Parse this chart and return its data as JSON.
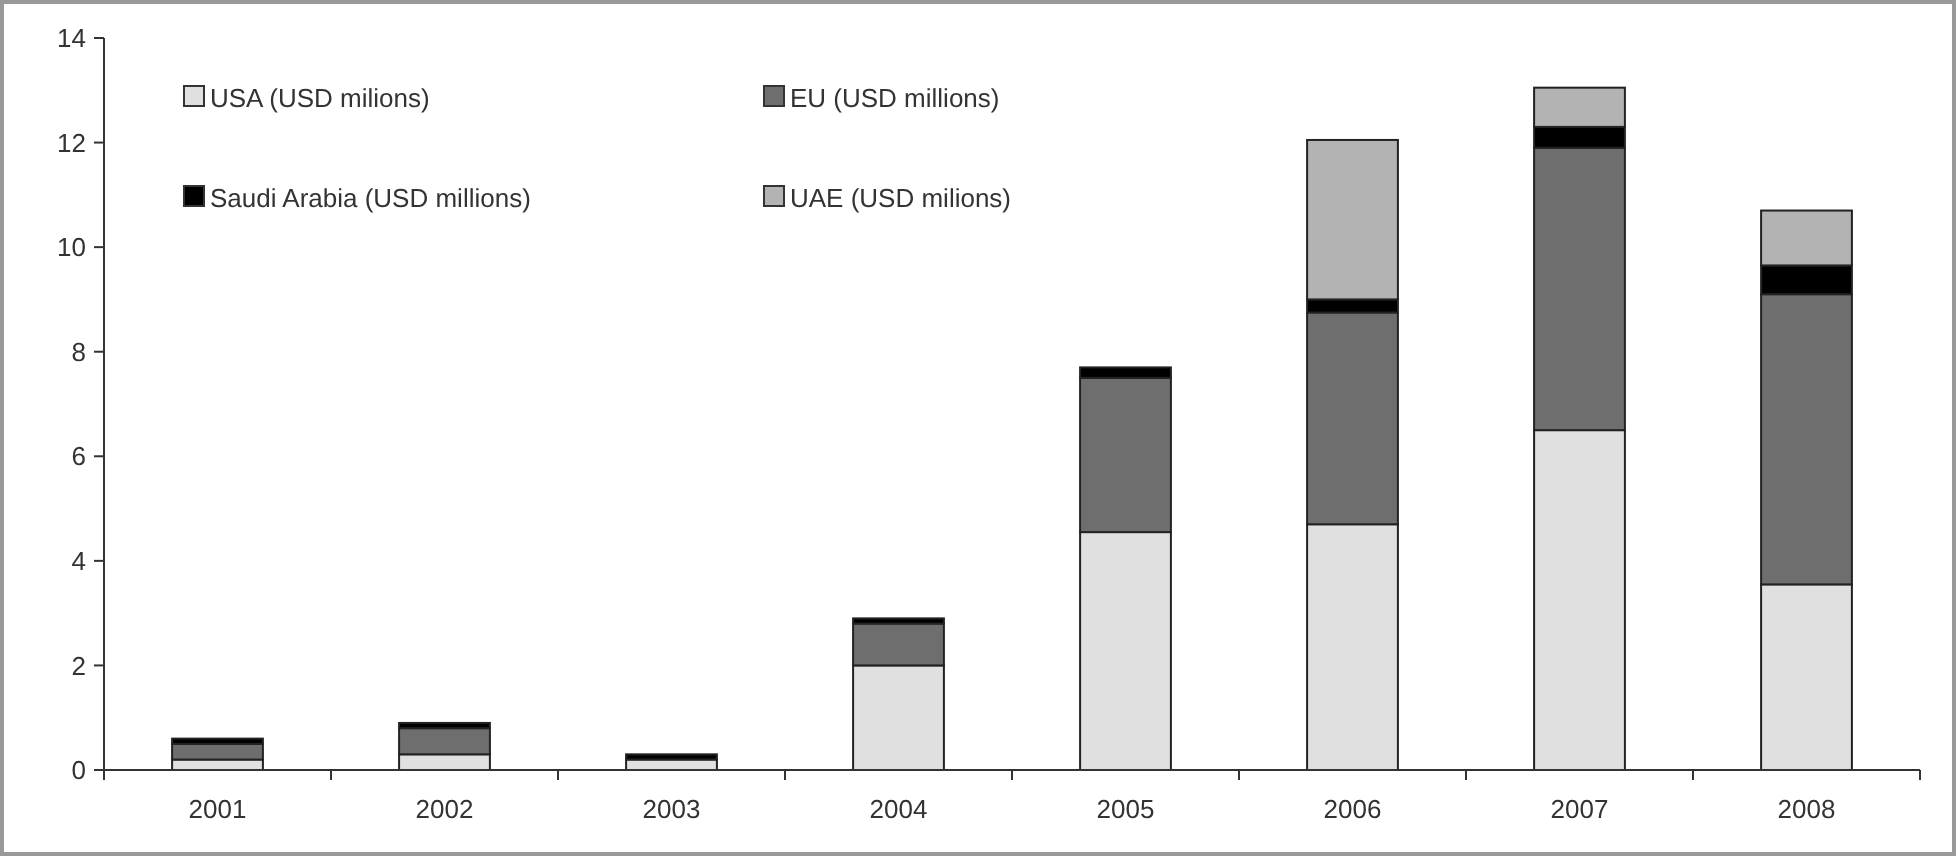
{
  "chart_data": {
    "type": "bar",
    "stacked": true,
    "categories": [
      "2001",
      "2002",
      "2003",
      "2004",
      "2005",
      "2006",
      "2007",
      "2008"
    ],
    "series": [
      {
        "name": "USA (USD milions)",
        "color": "#e0e0e0",
        "values": [
          0.2,
          0.3,
          0.2,
          2.0,
          4.55,
          4.7,
          6.5,
          3.55
        ]
      },
      {
        "name": "EU (USD millions)",
        "color": "#6e6e6e",
        "values": [
          0.3,
          0.5,
          0,
          0.8,
          2.95,
          4.05,
          5.4,
          5.55
        ]
      },
      {
        "name": "Saudi Arabia (USD millions)",
        "color": "#000000",
        "values": [
          0.1,
          0.1,
          0.1,
          0.1,
          0.2,
          0.25,
          0.4,
          0.55
        ]
      },
      {
        "name": "UAE (USD milions)",
        "color": "#b3b3b3",
        "values": [
          0,
          0,
          0,
          0,
          0,
          3.05,
          0.75,
          1.05
        ]
      }
    ],
    "ylim": [
      0,
      14
    ],
    "yticks": [
      0,
      2,
      4,
      6,
      8,
      10,
      12,
      14
    ],
    "grid": false,
    "legend": "top left"
  }
}
